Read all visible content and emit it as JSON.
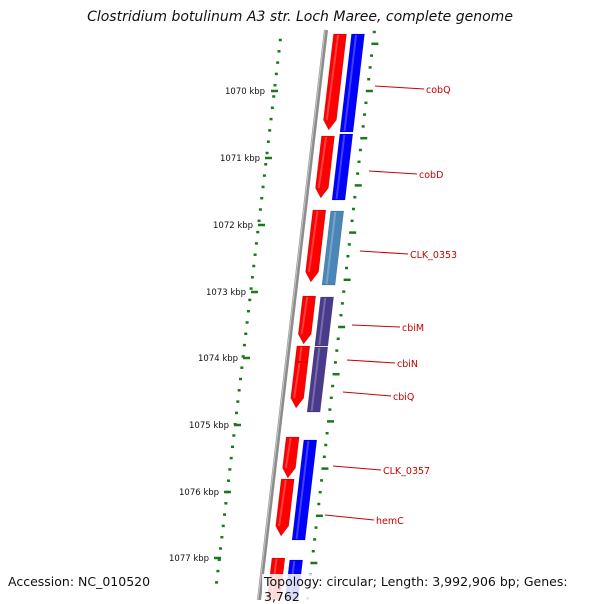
{
  "title": "Clostridium botulinum A3 str. Loch Maree, complete genome",
  "footer": {
    "accession": "Accession: NC_010520",
    "summary": "Topology: circular; Length: 3,992,906 bp; Genes: 3,762"
  },
  "colors": {
    "backbone": "#8c8c8c",
    "ruler": "#1a7a1a",
    "forward_strand": "#ff0000",
    "reverse_strand": "#0000ff",
    "reverse_light": "#4a86b8",
    "reverse_purple": "#4a3a8c",
    "label": "#cc0000"
  },
  "kbp_ticks": [
    {
      "label": "1070 kbp"
    },
    {
      "label": "1071 kbp"
    },
    {
      "label": "1072 kbp"
    },
    {
      "label": "1073 kbp"
    },
    {
      "label": "1074 kbp"
    },
    {
      "label": "1075 kbp"
    },
    {
      "label": "1076 kbp"
    },
    {
      "label": "1077 kbp"
    }
  ],
  "gene_labels": [
    {
      "name": "cobQ"
    },
    {
      "name": "cobD"
    },
    {
      "name": "CLK_0353"
    },
    {
      "name": "cbiM"
    },
    {
      "name": "cbiN"
    },
    {
      "name": "cbiQ"
    },
    {
      "name": "CLK_0357"
    },
    {
      "name": "hemC"
    }
  ]
}
